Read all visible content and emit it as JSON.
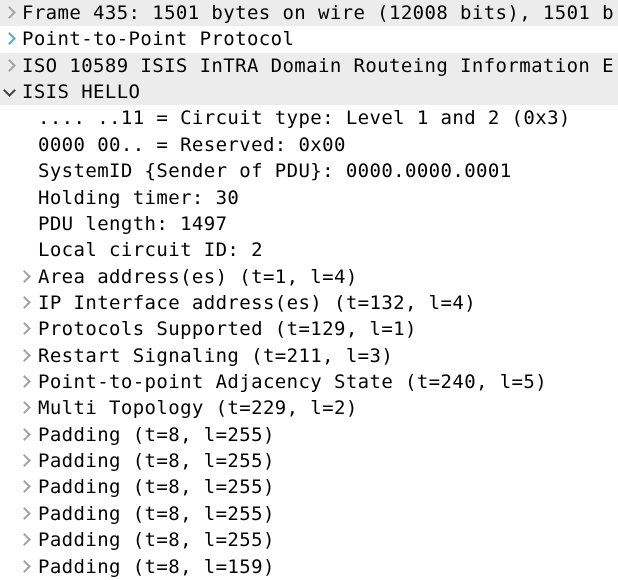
{
  "app": {
    "pane_name": "Packet details tree (Wireshark)"
  },
  "colors": {
    "row_stripe_background": "#ececec",
    "row_plain_background": "#ffffff",
    "text": "#000000",
    "expander_normal": "#a2a2a2",
    "expander_hover": "#42aee0",
    "expander_expanded": "#3f3f3f"
  },
  "tree": {
    "rows": [
      {
        "text": "Frame 435: 1501 bytes on wire (12008 bits), 1501 b",
        "depth": 0,
        "expander": "collapsed",
        "expander_style": "normal",
        "background": "stripe"
      },
      {
        "text": "Point-to-Point Protocol",
        "depth": 0,
        "expander": "collapsed",
        "expander_style": "hover",
        "background": "plain"
      },
      {
        "text": "ISO 10589 ISIS InTRA Domain Routeing Information E",
        "depth": 0,
        "expander": "collapsed",
        "expander_style": "normal",
        "background": "stripe"
      },
      {
        "text": "ISIS HELLO",
        "depth": 0,
        "expander": "expanded",
        "expander_style": "dark",
        "background": "stripe"
      },
      {
        "text": ".... ..11 = Circuit type: Level 1 and 2 (0x3)",
        "depth": 1,
        "expander": "none",
        "expander_style": "none",
        "background": "plain"
      },
      {
        "text": "0000 00.. = Reserved: 0x00",
        "depth": 1,
        "expander": "none",
        "expander_style": "none",
        "background": "plain"
      },
      {
        "text": "SystemID {Sender of PDU}: 0000.0000.0001",
        "depth": 1,
        "expander": "none",
        "expander_style": "none",
        "background": "plain"
      },
      {
        "text": "Holding timer: 30",
        "depth": 1,
        "expander": "none",
        "expander_style": "none",
        "background": "plain"
      },
      {
        "text": "PDU length: 1497",
        "depth": 1,
        "expander": "none",
        "expander_style": "none",
        "background": "plain"
      },
      {
        "text": "Local circuit ID: 2",
        "depth": 1,
        "expander": "none",
        "expander_style": "none",
        "background": "plain"
      },
      {
        "text": "Area address(es) (t=1, l=4)",
        "depth": 1,
        "expander": "collapsed",
        "expander_style": "normal",
        "background": "plain"
      },
      {
        "text": "IP Interface address(es) (t=132, l=4)",
        "depth": 1,
        "expander": "collapsed",
        "expander_style": "normal",
        "background": "plain"
      },
      {
        "text": "Protocols Supported (t=129, l=1)",
        "depth": 1,
        "expander": "collapsed",
        "expander_style": "normal",
        "background": "plain"
      },
      {
        "text": "Restart Signaling (t=211, l=3)",
        "depth": 1,
        "expander": "collapsed",
        "expander_style": "normal",
        "background": "plain"
      },
      {
        "text": "Point-to-point Adjacency State (t=240, l=5)",
        "depth": 1,
        "expander": "collapsed",
        "expander_style": "normal",
        "background": "plain"
      },
      {
        "text": "Multi Topology (t=229, l=2)",
        "depth": 1,
        "expander": "collapsed",
        "expander_style": "normal",
        "background": "plain"
      },
      {
        "text": "Padding (t=8, l=255)",
        "depth": 1,
        "expander": "collapsed",
        "expander_style": "normal",
        "background": "plain"
      },
      {
        "text": "Padding (t=8, l=255)",
        "depth": 1,
        "expander": "collapsed",
        "expander_style": "normal",
        "background": "plain"
      },
      {
        "text": "Padding (t=8, l=255)",
        "depth": 1,
        "expander": "collapsed",
        "expander_style": "normal",
        "background": "plain"
      },
      {
        "text": "Padding (t=8, l=255)",
        "depth": 1,
        "expander": "collapsed",
        "expander_style": "normal",
        "background": "plain"
      },
      {
        "text": "Padding (t=8, l=255)",
        "depth": 1,
        "expander": "collapsed",
        "expander_style": "normal",
        "background": "plain"
      },
      {
        "text": "Padding (t=8, l=159)",
        "depth": 1,
        "expander": "collapsed",
        "expander_style": "normal",
        "background": "plain"
      }
    ]
  }
}
